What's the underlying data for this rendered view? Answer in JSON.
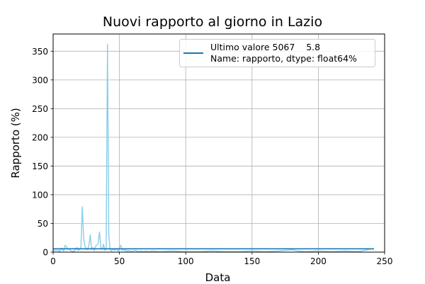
{
  "chart_data": {
    "type": "line",
    "title": "Nuovi rapporto al giorno in Lazio",
    "xlabel": "Data",
    "ylabel": "Rapporto (%)",
    "xlim": [
      0,
      250
    ],
    "ylim": [
      0,
      380
    ],
    "xticks": [
      0,
      50,
      100,
      150,
      200,
      250
    ],
    "yticks": [
      0,
      50,
      100,
      150,
      200,
      250,
      300,
      350
    ],
    "grid": true,
    "legend_position": "top-right",
    "legend_entries": [
      {
        "label_line1": "Ultimo valore 5067    5.8",
        "label_line2": "Name: rapporto, dtype: float64%",
        "color": "#1f77b4"
      }
    ],
    "series": [
      {
        "color": "#87ceeb",
        "x": [
          0,
          4,
          5,
          6,
          7,
          8,
          9,
          10,
          11,
          12,
          13,
          14,
          15,
          16,
          17,
          18,
          19,
          20,
          21,
          22,
          23,
          24,
          25,
          26,
          27,
          28,
          29,
          30,
          31,
          32,
          33,
          34,
          35,
          36,
          37,
          38,
          39,
          40,
          41,
          42,
          43,
          44,
          45,
          46,
          47,
          48,
          49,
          50,
          51,
          52,
          53,
          54,
          55,
          56,
          57,
          58,
          59,
          60,
          62,
          64,
          66,
          68,
          70,
          72,
          75,
          80,
          90,
          100,
          110,
          120,
          130,
          140,
          150,
          160,
          170,
          175,
          180,
          185,
          190,
          200,
          210,
          220,
          230,
          235,
          240,
          242
        ],
        "y": [
          3,
          3,
          1,
          7,
          4,
          2,
          12,
          10,
          5,
          6,
          3,
          2,
          1,
          2,
          6,
          8,
          3,
          5,
          9,
          79,
          25,
          10,
          6,
          4,
          12,
          30,
          5,
          8,
          3,
          10,
          12,
          16,
          35,
          8,
          5,
          14,
          3,
          6,
          362,
          30,
          4,
          2,
          6,
          3,
          5,
          4,
          2,
          8,
          12,
          3,
          6,
          2,
          4,
          1,
          3,
          2,
          1,
          2,
          3,
          1,
          2,
          1,
          2,
          1,
          2,
          1,
          2,
          1,
          1,
          2,
          1,
          1,
          2,
          1,
          2,
          3,
          4,
          2,
          1,
          2,
          1,
          2,
          1,
          3,
          6,
          5
        ]
      },
      {
        "name": "Ultimo valore 5067    5.8",
        "color": "#1f77b4",
        "x": [
          0,
          242
        ],
        "y": [
          5.8,
          5.8
        ]
      }
    ]
  }
}
